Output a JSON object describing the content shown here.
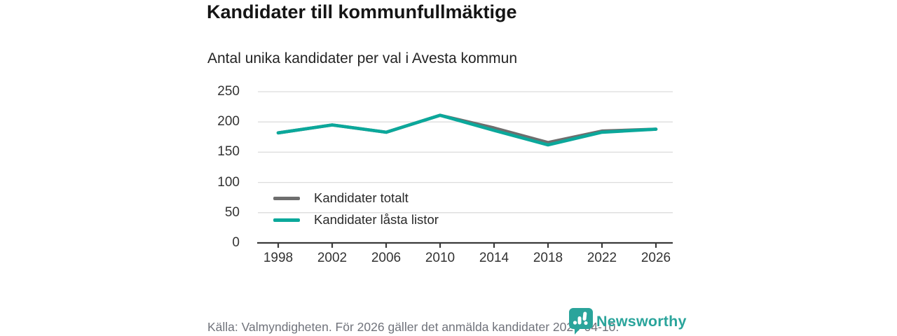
{
  "header": {
    "title": "Kandidater till kommunfullmäktige",
    "subtitle": "Antal unika kandidater per val i Avesta kommun"
  },
  "chart_data": {
    "type": "line",
    "title": "Kandidater till kommunfullmäktige",
    "subtitle": "Antal unika kandidater per val i Avesta kommun",
    "categories": [
      1998,
      2002,
      2006,
      2010,
      2014,
      2018,
      2022,
      2026
    ],
    "series": [
      {
        "name": "Kandidater totalt",
        "color": "#6e6e6e",
        "values": [
          182,
          195,
          183,
          211,
          190,
          166,
          185,
          188
        ]
      },
      {
        "name": "Kandidater låsta listor",
        "color": "#0ba89b",
        "values": [
          182,
          195,
          183,
          211,
          186,
          162,
          183,
          188
        ]
      }
    ],
    "xlabel": "",
    "ylabel": "",
    "ylim": [
      0,
      250
    ],
    "yticks": [
      0,
      50,
      100,
      150,
      200,
      250
    ],
    "grid": "horizontal",
    "legend_position": "inside-bottom-left"
  },
  "legend": {
    "items": [
      {
        "label": "Kandidater totalt"
      },
      {
        "label": "Kandidater låsta listor"
      }
    ]
  },
  "footer": {
    "source": "Källa: Valmyndigheten. För 2026 gäller det anmälda kandidater 2026-04-10.",
    "brand": "Newsworthy",
    "brand_color": "#2aa49b"
  }
}
